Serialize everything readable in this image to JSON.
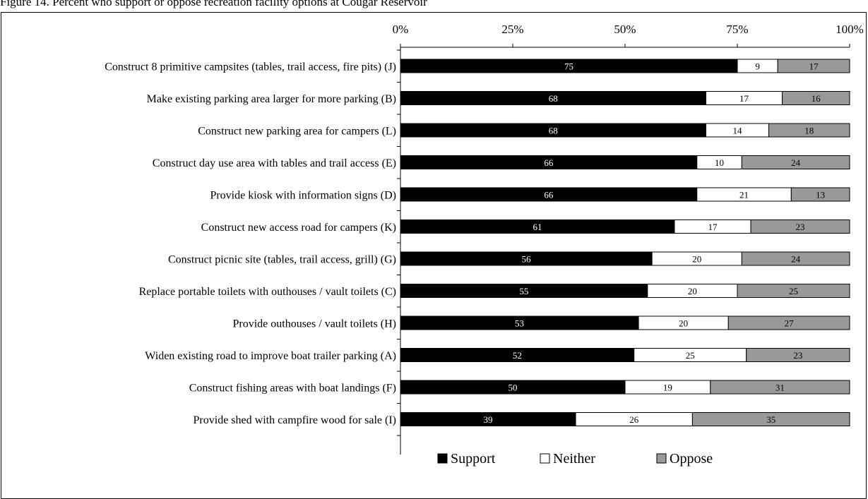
{
  "caption": "Figure 14. Percent who support or oppose recreation facility options at Cougar Reservoir",
  "chart_data": {
    "type": "bar",
    "orientation": "horizontal",
    "stacked": true,
    "percent": true,
    "title": "",
    "xlabel": "",
    "ylabel": "",
    "xlim": [
      0,
      100
    ],
    "x_ticks": [
      "0%",
      "25%",
      "50%",
      "75%",
      "100%"
    ],
    "x_tick_values": [
      0,
      25,
      50,
      75,
      100
    ],
    "x_axis_position": "top",
    "grid": false,
    "legend_position": "bottom",
    "categories": [
      "Construct 8 primitive campsites (tables, trail access, fire pits) (J)",
      "Make existing parking area larger for more parking (B)",
      "Construct new parking area for campers (L)",
      "Construct day use area with tables and trail access (E)",
      "Provide kiosk with information signs (D)",
      "Construct new access road for campers (K)",
      "Construct picnic site (tables, trail access, grill) (G)",
      "Replace portable toilets with outhouses / vault toilets (C)",
      "Provide outhouses / vault toilets (H)",
      "Widen existing road to improve boat trailer parking (A)",
      "Construct fishing areas with boat landings (F)",
      "Provide shed with campfire wood for sale (I)"
    ],
    "series": [
      {
        "name": "Support",
        "color": "#000000",
        "text_color": "#ffffff",
        "values": [
          75,
          68,
          68,
          66,
          66,
          61,
          56,
          55,
          53,
          52,
          50,
          39
        ]
      },
      {
        "name": "Neither",
        "color": "#ffffff",
        "text_color": "#000000",
        "values": [
          9,
          17,
          14,
          10,
          21,
          17,
          20,
          20,
          20,
          25,
          19,
          26
        ]
      },
      {
        "name": "Oppose",
        "color": "#999999",
        "text_color": "#000000",
        "values": [
          17,
          16,
          18,
          24,
          13,
          23,
          24,
          25,
          27,
          23,
          31,
          35
        ]
      }
    ]
  }
}
